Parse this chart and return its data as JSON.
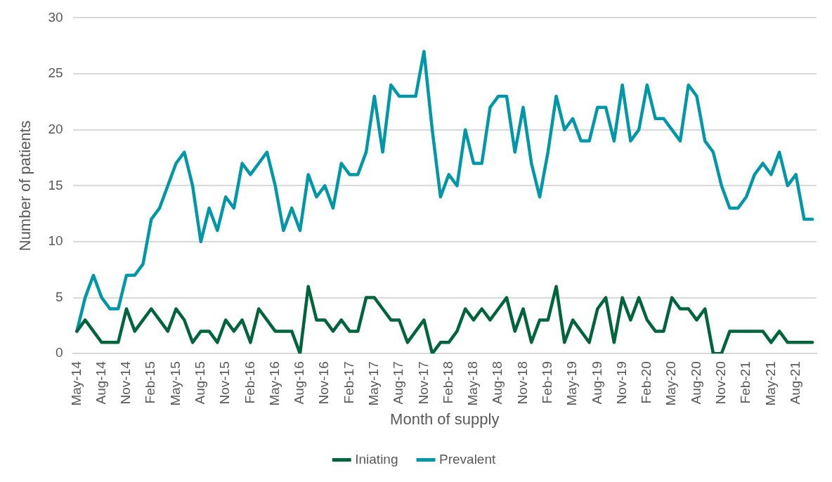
{
  "chart_data": {
    "type": "line",
    "xlabel": "Month of supply",
    "ylabel": "Number of patients",
    "categories": [
      "May-14",
      null,
      null,
      "Aug-14",
      null,
      null,
      "Nov-14",
      null,
      null,
      "Feb-15",
      null,
      null,
      "May-15",
      null,
      null,
      "Aug-15",
      null,
      null,
      "Nov-15",
      null,
      null,
      "Feb-16",
      null,
      null,
      "May-16",
      null,
      null,
      "Aug-16",
      null,
      null,
      "Nov-16",
      null,
      null,
      "Feb-17",
      null,
      null,
      "May-17",
      null,
      null,
      "Aug-17",
      null,
      null,
      "Nov-17",
      null,
      null,
      "Feb-18",
      null,
      null,
      "May-18",
      null,
      null,
      "Aug-18",
      null,
      null,
      "Nov-18",
      null,
      null,
      "Feb-19",
      null,
      null,
      "May-19",
      null,
      null,
      "Aug-19",
      null,
      null,
      "Nov-19",
      null,
      null,
      "Feb-20",
      null,
      null,
      "May-20",
      null,
      null,
      "Aug-20",
      null,
      null,
      "Nov-20",
      null,
      null,
      "Feb-21",
      null,
      null,
      "May-21",
      null,
      null,
      "Aug-21",
      null,
      null
    ],
    "series": [
      {
        "name": "Iniating",
        "color": "#00643c",
        "values": [
          2,
          3,
          2,
          1,
          1,
          1,
          4,
          2,
          3,
          4,
          3,
          2,
          4,
          3,
          1,
          2,
          2,
          1,
          3,
          2,
          3,
          1,
          4,
          3,
          2,
          2,
          2,
          0,
          6,
          3,
          3,
          2,
          3,
          2,
          2,
          5,
          5,
          4,
          3,
          3,
          1,
          2,
          3,
          0,
          1,
          1,
          2,
          4,
          3,
          4,
          3,
          4,
          5,
          2,
          4,
          1,
          3,
          3,
          6,
          1,
          3,
          2,
          1,
          4,
          5,
          1,
          5,
          3,
          5,
          3,
          2,
          2,
          5,
          4,
          4,
          3,
          4,
          0,
          0,
          2,
          2,
          2,
          2,
          2,
          1,
          2,
          1,
          1,
          1,
          1
        ]
      },
      {
        "name": "Prevalent",
        "color": "#0098a8",
        "values": [
          2,
          5,
          7,
          5,
          4,
          4,
          7,
          7,
          8,
          12,
          13,
          15,
          17,
          18,
          15,
          10,
          13,
          11,
          14,
          13,
          17,
          16,
          17,
          18,
          15,
          11,
          13,
          11,
          16,
          14,
          15,
          13,
          17,
          16,
          16,
          18,
          23,
          18,
          24,
          23,
          23,
          23,
          27,
          20,
          14,
          16,
          15,
          20,
          17,
          17,
          22,
          23,
          23,
          18,
          22,
          17,
          14,
          18,
          23,
          20,
          21,
          19,
          19,
          22,
          22,
          19,
          24,
          19,
          20,
          24,
          21,
          21,
          20,
          19,
          24,
          23,
          19,
          18,
          15,
          13,
          13,
          14,
          16,
          17,
          16,
          18,
          15,
          16,
          12,
          12
        ]
      }
    ],
    "ylim": [
      0,
      30
    ],
    "yticks": [
      0,
      5,
      10,
      15,
      20,
      25,
      30
    ],
    "grid": "y",
    "legend": "bottom",
    "marker": "none",
    "line_style": "solid"
  }
}
